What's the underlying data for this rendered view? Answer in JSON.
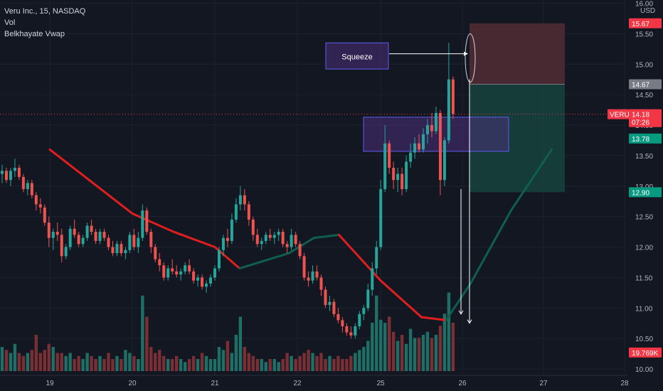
{
  "legend": {
    "title": "Veru Inc., 15, NASDAQ",
    "vol": "Vol",
    "indicator": "Belkhayate Vwap"
  },
  "chart_data": {
    "type": "candlestick",
    "currency": "USD",
    "ylim": [
      10.0,
      16.0
    ],
    "y_ticks": [
      10.0,
      10.5,
      11.0,
      11.5,
      12.0,
      12.5,
      13.0,
      13.5,
      14.0,
      14.5,
      15.0,
      15.5,
      16.0
    ],
    "y_tick_labels": [
      "10.00",
      "10.50",
      "11.00",
      "11.50",
      "12.00",
      "12.50",
      "13.00",
      "13.50",
      "14.00",
      "14.50",
      "15.00",
      "15.50",
      "16.00"
    ],
    "x_ticks": [
      "19",
      "20",
      "21",
      "22",
      "25",
      "26",
      "27",
      "28"
    ],
    "price_tags": [
      {
        "label": "15.67",
        "value": 15.67,
        "color": "#f23645"
      },
      {
        "label": "14.67",
        "value": 14.67,
        "color": "#787b86"
      },
      {
        "label": "VERU",
        "value": 14.18,
        "color": "#f23645"
      },
      {
        "label": "14.18",
        "value": 14.18,
        "color": "#f23645"
      },
      {
        "label": "07:26",
        "value": 14.05,
        "color": "#f23645"
      },
      {
        "label": "13.78",
        "value": 13.78,
        "color": "#089981"
      },
      {
        "label": "12.90",
        "value": 12.9,
        "color": "#089981"
      },
      {
        "label": "19.769K",
        "value": 10.27,
        "color": "#f23645"
      }
    ],
    "current_price": 14.18,
    "annotation": {
      "text": "Squeeze"
    },
    "zones": {
      "supply_box": {
        "top": 14.13,
        "bottom": 13.57
      },
      "squeeze_box": {
        "top": 15.35,
        "bottom": 14.92
      },
      "position": {
        "stop": 15.67,
        "entry": 14.67,
        "target": 12.9
      }
    },
    "colors": {
      "up": "#26a69a",
      "down": "#ef5350",
      "vol_up": "#1e6f66",
      "vol_down": "#7a2f35",
      "vwap_down": "#e01e1e",
      "vwap_up": "#0f5e52",
      "box_fill": "#4a2f7a",
      "box_border": "#5e5ef0",
      "stop_zone": "#4f2a33",
      "target_zone": "#17403c"
    },
    "vwap_series": [
      {
        "x": 0,
        "y": 13.6
      },
      {
        "x": 1,
        "y": 12.55
      },
      {
        "x": 1.5,
        "y": 12.25
      },
      {
        "x": 2,
        "y": 12.0
      },
      {
        "x": 2.3,
        "y": 11.65
      },
      {
        "x": 2.9,
        "y": 11.9
      },
      {
        "x": 3.2,
        "y": 12.15
      },
      {
        "x": 3.5,
        "y": 12.2
      },
      {
        "x": 4.0,
        "y": 11.45
      },
      {
        "x": 4.5,
        "y": 10.85
      },
      {
        "x": 4.8,
        "y": 10.8
      },
      {
        "x": 5.1,
        "y": 11.4
      },
      {
        "x": 5.6,
        "y": 12.6
      },
      {
        "x": 6.1,
        "y": 13.6
      }
    ],
    "candles": [
      [
        13.2,
        13.35,
        13.05,
        13.25
      ],
      [
        13.25,
        13.3,
        13.05,
        13.1
      ],
      [
        13.1,
        13.3,
        13.0,
        13.25
      ],
      [
        13.25,
        13.45,
        13.15,
        13.3
      ],
      [
        13.3,
        13.35,
        13.1,
        13.15
      ],
      [
        13.15,
        13.2,
        12.9,
        12.95
      ],
      [
        12.95,
        13.1,
        12.85,
        13.05
      ],
      [
        13.05,
        13.1,
        12.8,
        12.85
      ],
      [
        12.85,
        12.9,
        12.6,
        12.7
      ],
      [
        12.7,
        12.8,
        12.55,
        12.65
      ],
      [
        12.65,
        12.7,
        12.35,
        12.4
      ],
      [
        12.4,
        12.5,
        12.0,
        12.15
      ],
      [
        12.15,
        12.3,
        11.95,
        12.25
      ],
      [
        12.25,
        12.4,
        12.1,
        12.2
      ],
      [
        12.2,
        12.3,
        11.75,
        11.85
      ],
      [
        11.85,
        12.05,
        11.8,
        12.0
      ],
      [
        12.0,
        12.35,
        11.95,
        12.3
      ],
      [
        12.3,
        12.45,
        12.15,
        12.2
      ],
      [
        12.2,
        12.25,
        12.0,
        12.05
      ],
      [
        12.05,
        12.2,
        12.0,
        12.15
      ],
      [
        12.15,
        12.4,
        12.1,
        12.35
      ],
      [
        12.35,
        12.45,
        12.2,
        12.25
      ],
      [
        12.25,
        12.3,
        12.05,
        12.1
      ],
      [
        12.1,
        12.3,
        12.05,
        12.25
      ],
      [
        12.25,
        12.3,
        12.1,
        12.15
      ],
      [
        12.15,
        12.2,
        11.95,
        12.0
      ],
      [
        12.0,
        12.1,
        11.85,
        11.9
      ],
      [
        11.9,
        12.1,
        11.85,
        12.05
      ],
      [
        12.05,
        12.1,
        11.85,
        11.9
      ],
      [
        11.9,
        12.0,
        11.8,
        11.95
      ],
      [
        11.95,
        12.25,
        11.9,
        12.2
      ],
      [
        12.2,
        12.3,
        11.95,
        12.0
      ],
      [
        12.0,
        12.25,
        11.9,
        12.15
      ],
      [
        12.15,
        12.7,
        12.1,
        12.6
      ],
      [
        12.6,
        12.65,
        12.2,
        12.25
      ],
      [
        12.25,
        12.3,
        11.9,
        12.0
      ],
      [
        12.0,
        12.05,
        11.75,
        11.8
      ],
      [
        11.8,
        11.9,
        11.6,
        11.7
      ],
      [
        11.7,
        11.75,
        11.45,
        11.5
      ],
      [
        11.5,
        11.7,
        11.45,
        11.65
      ],
      [
        11.65,
        11.8,
        11.55,
        11.6
      ],
      [
        11.6,
        11.7,
        11.5,
        11.55
      ],
      [
        11.55,
        11.65,
        11.45,
        11.6
      ],
      [
        11.6,
        11.75,
        11.55,
        11.7
      ],
      [
        11.7,
        11.8,
        11.55,
        11.6
      ],
      [
        11.6,
        11.65,
        11.4,
        11.45
      ],
      [
        11.45,
        11.55,
        11.35,
        11.5
      ],
      [
        11.5,
        11.55,
        11.3,
        11.35
      ],
      [
        11.35,
        11.45,
        11.25,
        11.4
      ],
      [
        11.4,
        11.55,
        11.35,
        11.5
      ],
      [
        11.5,
        11.7,
        11.45,
        11.65
      ],
      [
        11.65,
        12.0,
        11.6,
        11.95
      ],
      [
        11.95,
        12.2,
        11.85,
        12.15
      ],
      [
        12.15,
        12.3,
        12.0,
        12.1
      ],
      [
        12.1,
        12.55,
        12.05,
        12.45
      ],
      [
        12.45,
        12.8,
        12.4,
        12.7
      ],
      [
        12.7,
        13.0,
        12.6,
        12.85
      ],
      [
        12.85,
        12.95,
        12.6,
        12.7
      ],
      [
        12.7,
        12.75,
        12.35,
        12.45
      ],
      [
        12.45,
        12.5,
        12.1,
        12.2
      ],
      [
        12.2,
        12.3,
        12.0,
        12.05
      ],
      [
        12.05,
        12.15,
        11.95,
        12.1
      ],
      [
        12.1,
        12.25,
        12.05,
        12.2
      ],
      [
        12.2,
        12.3,
        12.1,
        12.15
      ],
      [
        12.15,
        12.25,
        12.05,
        12.2
      ],
      [
        12.2,
        12.3,
        12.1,
        12.25
      ],
      [
        12.25,
        12.3,
        12.0,
        12.05
      ],
      [
        12.05,
        12.1,
        11.9,
        12.0
      ],
      [
        12.0,
        12.3,
        11.95,
        12.2
      ],
      [
        12.2,
        12.25,
        12.0,
        12.05
      ],
      [
        12.05,
        12.1,
        11.8,
        11.85
      ],
      [
        11.85,
        11.9,
        11.45,
        11.5
      ],
      [
        11.5,
        11.6,
        11.35,
        11.45
      ],
      [
        11.45,
        11.7,
        11.4,
        11.6
      ],
      [
        11.6,
        11.7,
        11.45,
        11.5
      ],
      [
        11.5,
        11.55,
        11.2,
        11.3
      ],
      [
        11.3,
        11.35,
        11.0,
        11.05
      ],
      [
        11.05,
        11.2,
        10.95,
        11.1
      ],
      [
        11.1,
        11.15,
        10.85,
        10.9
      ],
      [
        10.9,
        11.0,
        10.75,
        10.8
      ],
      [
        10.8,
        10.85,
        10.6,
        10.7
      ],
      [
        10.7,
        10.75,
        10.55,
        10.6
      ],
      [
        10.6,
        10.7,
        10.5,
        10.55
      ],
      [
        10.55,
        10.75,
        10.5,
        10.7
      ],
      [
        10.7,
        10.95,
        10.65,
        10.9
      ],
      [
        10.9,
        11.05,
        10.8,
        11.0
      ],
      [
        11.0,
        11.4,
        10.95,
        11.3
      ],
      [
        11.3,
        11.75,
        11.2,
        11.65
      ],
      [
        11.65,
        12.1,
        11.55,
        12.0
      ],
      [
        12.0,
        13.1,
        11.95,
        12.95
      ],
      [
        12.95,
        14.0,
        12.9,
        13.7
      ],
      [
        13.7,
        13.75,
        13.2,
        13.3
      ],
      [
        13.3,
        13.4,
        12.95,
        13.1
      ],
      [
        13.1,
        13.3,
        12.9,
        13.2
      ],
      [
        13.2,
        13.3,
        12.85,
        12.95
      ],
      [
        12.95,
        13.5,
        12.9,
        13.4
      ],
      [
        13.4,
        13.7,
        13.3,
        13.55
      ],
      [
        13.55,
        13.8,
        13.45,
        13.7
      ],
      [
        13.7,
        13.85,
        13.55,
        13.6
      ],
      [
        13.6,
        13.95,
        13.55,
        13.85
      ],
      [
        13.85,
        14.1,
        13.7,
        14.0
      ],
      [
        14.0,
        14.2,
        13.8,
        13.9
      ],
      [
        13.9,
        14.3,
        13.85,
        14.2
      ],
      [
        14.2,
        14.25,
        12.85,
        13.1
      ],
      [
        13.1,
        13.8,
        13.0,
        13.75
      ],
      [
        13.75,
        15.35,
        13.7,
        14.75
      ],
      [
        14.75,
        14.8,
        14.1,
        14.18
      ]
    ],
    "volumes": [
      0.4,
      0.35,
      0.3,
      0.45,
      0.3,
      0.25,
      0.3,
      0.35,
      0.6,
      0.3,
      0.35,
      0.45,
      0.4,
      0.3,
      0.3,
      0.25,
      0.3,
      0.2,
      0.25,
      0.2,
      0.3,
      0.25,
      0.2,
      0.25,
      0.2,
      0.3,
      0.2,
      0.25,
      0.2,
      0.35,
      0.3,
      0.25,
      0.2,
      1.25,
      0.9,
      0.4,
      0.3,
      0.35,
      0.25,
      0.2,
      0.2,
      0.25,
      0.2,
      0.15,
      0.2,
      0.25,
      0.2,
      0.3,
      0.25,
      0.2,
      0.2,
      0.4,
      0.35,
      0.5,
      0.3,
      0.6,
      0.9,
      0.4,
      0.3,
      0.25,
      0.2,
      0.2,
      0.15,
      0.2,
      0.2,
      0.15,
      0.2,
      0.3,
      0.25,
      0.2,
      0.25,
      0.3,
      0.35,
      0.3,
      0.25,
      0.3,
      0.2,
      0.25,
      0.2,
      0.25,
      0.2,
      0.2,
      0.25,
      0.3,
      0.35,
      0.4,
      0.5,
      0.8,
      1.25,
      0.85,
      0.8,
      0.9,
      0.65,
      0.5,
      0.6,
      0.45,
      0.7,
      0.55,
      0.55,
      0.6,
      0.65,
      0.55,
      0.6,
      0.75,
      0.95,
      1.3,
      0.8
    ]
  }
}
